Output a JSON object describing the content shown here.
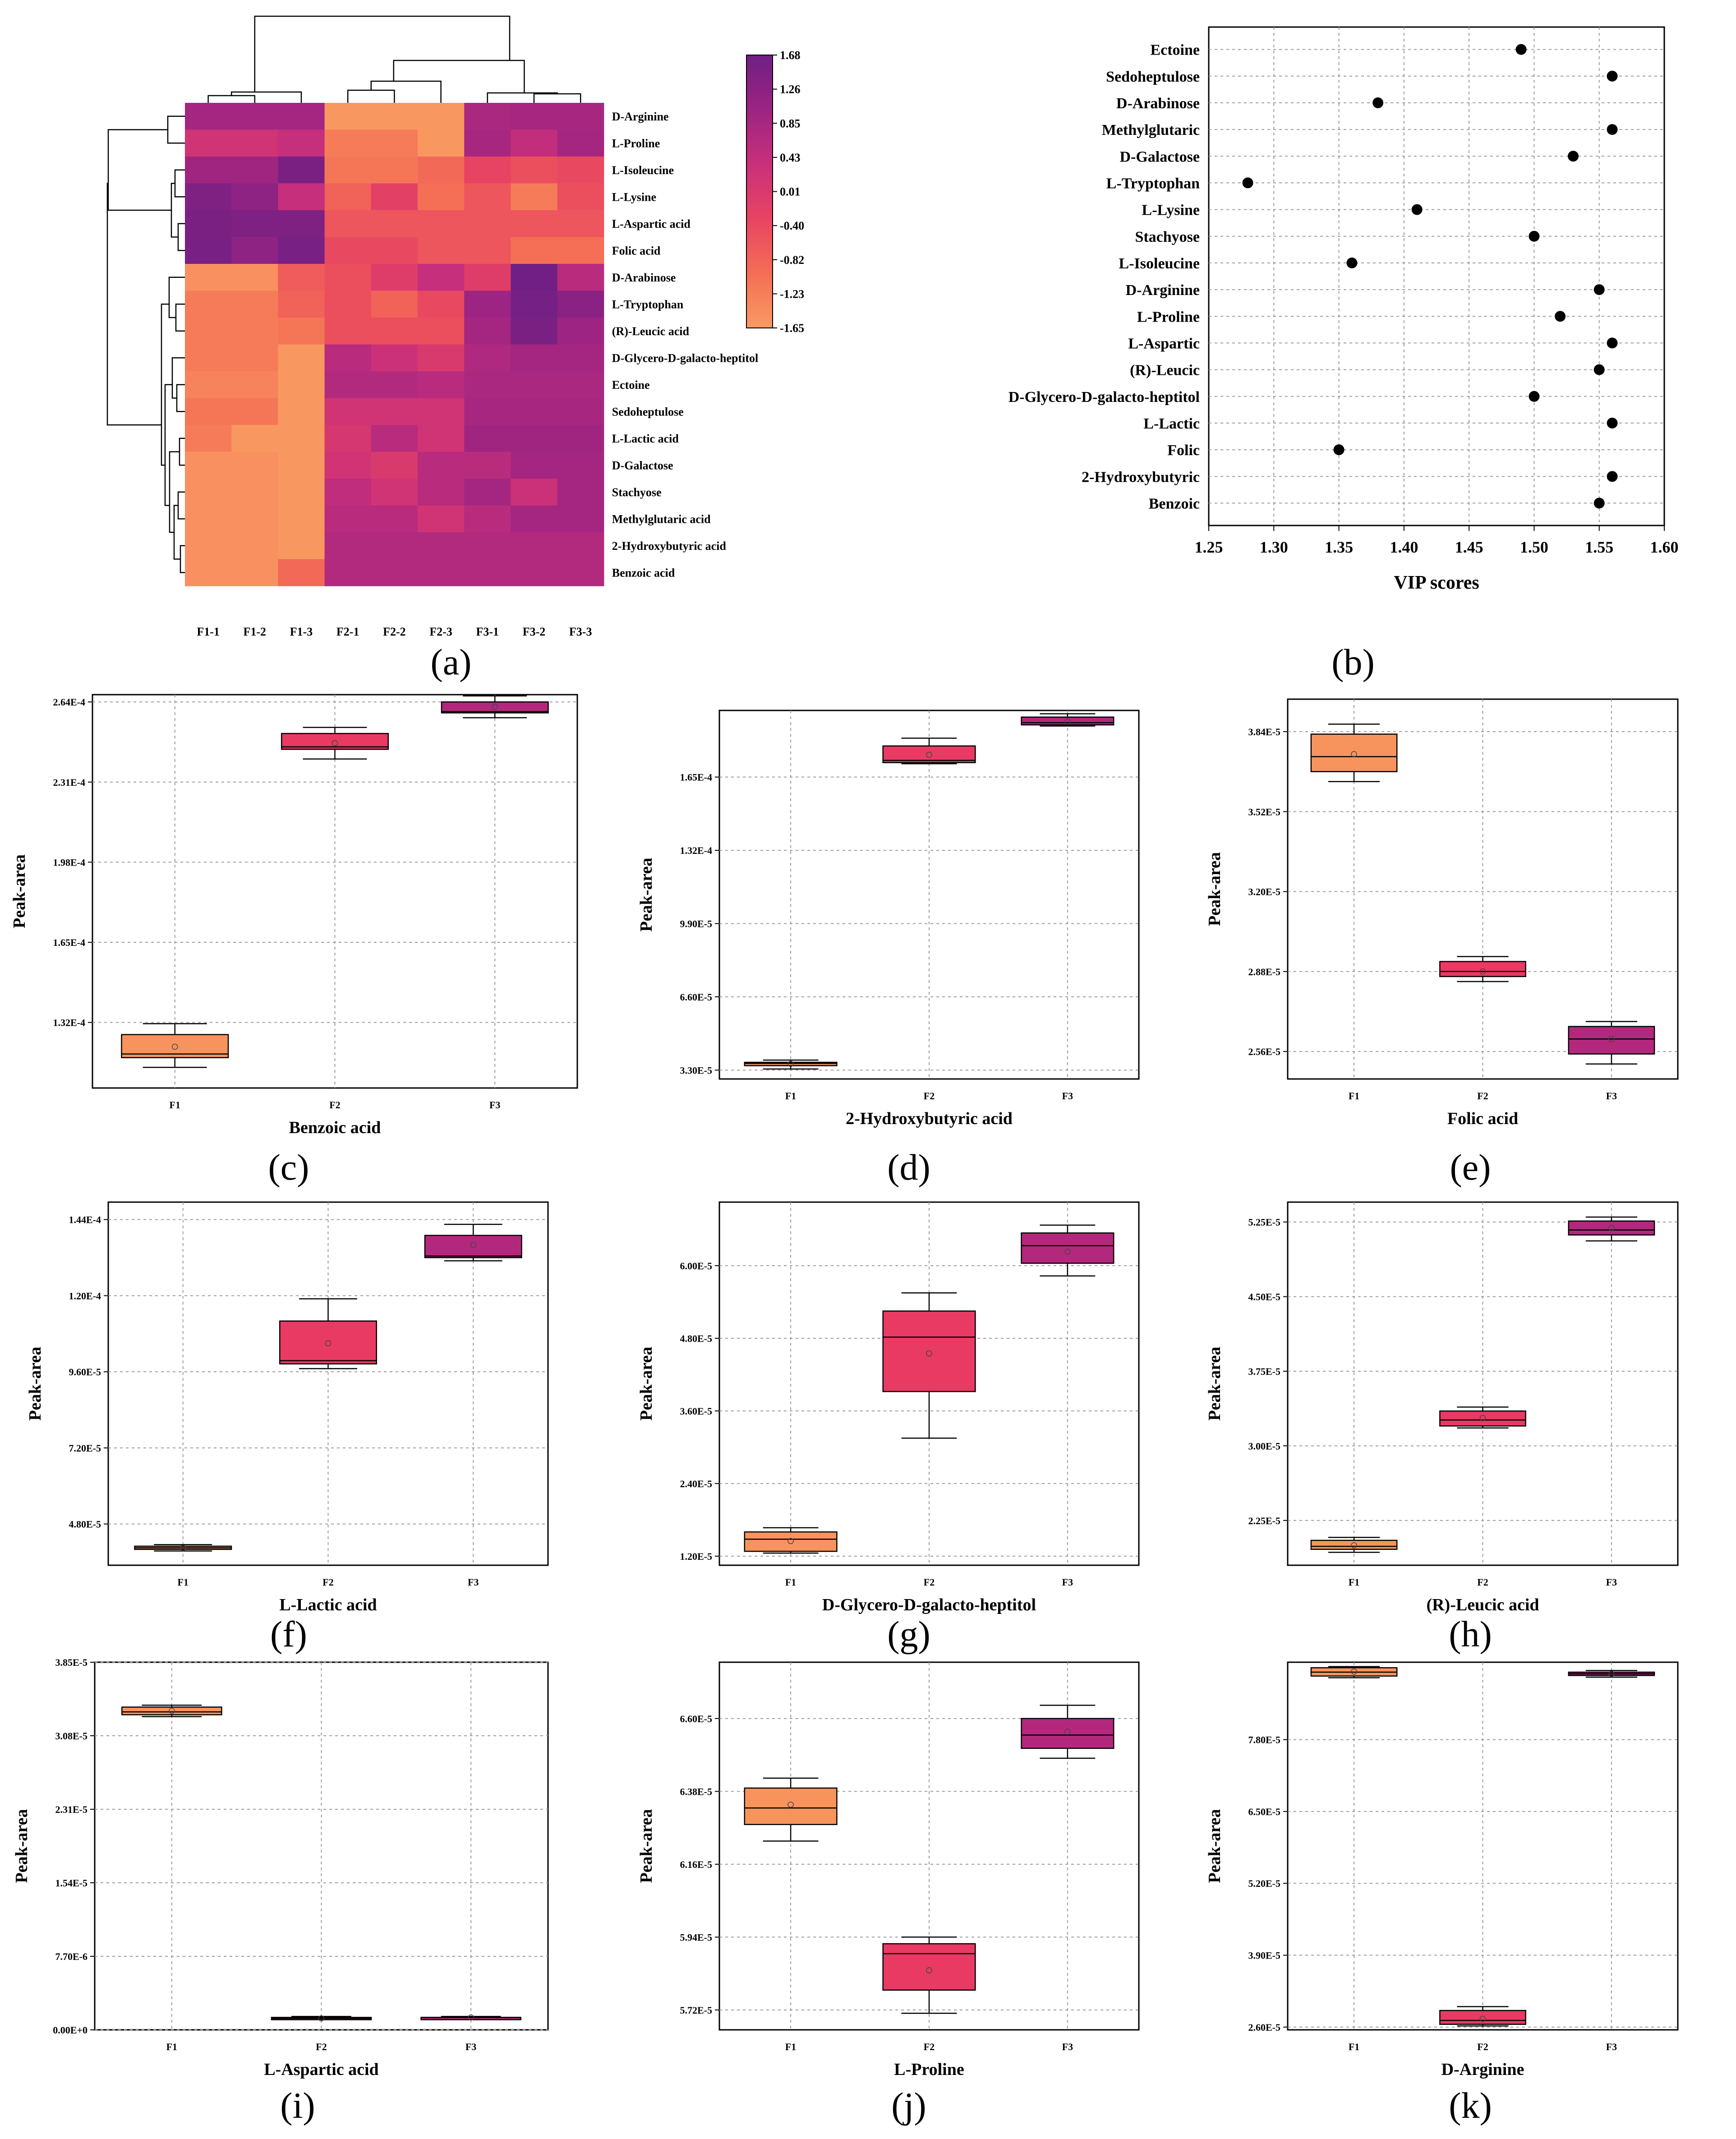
{
  "colors": {
    "F1": "#f7945d",
    "F2": "#e83a63",
    "F3": "#b3287d",
    "heat_stops": [
      "#f99a62",
      "#f46e55",
      "#e84462",
      "#c9307a",
      "#9c2482",
      "#6f1f84"
    ],
    "dot": "#000000"
  },
  "heatmap": {
    "panel_label": "(a)",
    "columns": [
      "F1-1",
      "F1-2",
      "F1-3",
      "F2-1",
      "F2-2",
      "F2-3",
      "F3-1",
      "F3-2",
      "F3-3"
    ],
    "rows": [
      "D-Arginine",
      "L-Proline",
      "L-Isoleucine",
      "L-Lysine",
      "L-Aspartic acid",
      "Folic acid",
      "D-Arabinose",
      "L-Tryptophan",
      "(R)-Leucic acid",
      "D-Glycero-D-galacto-heptitol",
      "Ectoine",
      "Sedoheptulose",
      "L-Lactic acid",
      "D-Galactose",
      "Stachyose",
      "Methylglutaric acid",
      "2-Hydroxybutyric acid",
      "Benzoic acid"
    ],
    "values": [
      [
        0.9,
        0.9,
        0.9,
        -1.6,
        -1.6,
        -1.6,
        0.8,
        0.85,
        0.85
      ],
      [
        0.2,
        0.2,
        0.4,
        -1.2,
        -1.2,
        -1.6,
        0.85,
        0.45,
        0.9
      ],
      [
        0.95,
        0.95,
        1.5,
        -1.1,
        -1.1,
        -0.9,
        -0.3,
        -0.5,
        -0.4
      ],
      [
        1.45,
        1.2,
        0.4,
        -0.8,
        -0.2,
        -1.0,
        -0.6,
        -1.2,
        -0.5
      ],
      [
        1.5,
        1.45,
        1.45,
        -0.6,
        -0.6,
        -0.6,
        -0.6,
        -0.6,
        -0.6
      ],
      [
        1.55,
        1.2,
        1.55,
        -0.4,
        -0.4,
        -0.6,
        -0.6,
        -1.0,
        -1.0
      ],
      [
        -1.5,
        -1.5,
        -0.7,
        -0.5,
        -0.1,
        0.4,
        -0.1,
        1.65,
        0.6
      ],
      [
        -1.2,
        -1.2,
        -0.8,
        -0.5,
        -0.8,
        -0.4,
        1.0,
        1.6,
        1.3
      ],
      [
        -1.2,
        -1.2,
        -1.1,
        -0.5,
        -0.5,
        -0.5,
        0.9,
        1.5,
        1.0
      ],
      [
        -1.2,
        -1.2,
        -1.6,
        0.6,
        0.3,
        0.0,
        0.75,
        0.9,
        0.9
      ],
      [
        -1.3,
        -1.3,
        -1.6,
        0.7,
        0.7,
        0.6,
        0.8,
        0.8,
        0.8
      ],
      [
        -1.1,
        -1.1,
        -1.6,
        0.2,
        0.2,
        0.2,
        0.85,
        0.85,
        0.85
      ],
      [
        -1.2,
        -1.6,
        -1.6,
        0.1,
        0.6,
        0.2,
        0.95,
        0.95,
        0.95
      ],
      [
        -1.5,
        -1.5,
        -1.6,
        0.2,
        0.0,
        0.6,
        0.6,
        0.9,
        0.9
      ],
      [
        -1.5,
        -1.5,
        -1.6,
        0.5,
        0.2,
        0.6,
        0.9,
        0.3,
        0.9
      ],
      [
        -1.5,
        -1.5,
        -1.6,
        0.6,
        0.6,
        0.2,
        0.6,
        0.9,
        0.9
      ],
      [
        -1.5,
        -1.5,
        -1.6,
        0.7,
        0.7,
        0.7,
        0.7,
        0.7,
        0.7
      ],
      [
        -1.5,
        -1.5,
        -0.9,
        0.7,
        0.7,
        0.7,
        0.7,
        0.7,
        0.7
      ]
    ],
    "scale_ticks": [
      "1.68",
      "1.26",
      "0.85",
      "0.43",
      "0.01",
      "-0.40",
      "-0.82",
      "-1.23",
      "-1.65"
    ],
    "scale_min": -1.65,
    "scale_max": 1.68
  },
  "vip": {
    "panel_label": "(b)",
    "xlabel": "VIP scores",
    "xlim": [
      1.25,
      1.6
    ],
    "ticks": [
      "1.25",
      "1.30",
      "1.35",
      "1.40",
      "1.45",
      "1.50",
      "1.55",
      "1.60"
    ],
    "names": [
      "Ectoine",
      "Sedoheptulose",
      "D-Arabinose",
      "Methylglutaric",
      "D-Galactose",
      "L-Tryptophan",
      "L-Lysine",
      "Stachyose",
      "L-Isoleucine",
      "D-Arginine",
      "L-Proline",
      "L-Aspartic",
      "(R)-Leucic",
      "D-Glycero-D-galacto-heptitol",
      "L-Lactic",
      "Folic",
      "2-Hydroxybutyric",
      "Benzoic"
    ],
    "values": [
      1.49,
      1.56,
      1.38,
      1.56,
      1.53,
      1.28,
      1.41,
      1.5,
      1.36,
      1.55,
      1.52,
      1.56,
      1.55,
      1.5,
      1.56,
      1.35,
      1.56,
      1.55
    ]
  },
  "boxes": [
    {
      "label": "(c)",
      "title": "Benzoic acid",
      "ylabel": "Peak-area",
      "ymin": 0.000105,
      "ymax": 0.000267,
      "ticks": [
        {
          "v": 0.000132,
          "t": "1.32E-4"
        },
        {
          "v": 0.000165,
          "t": "1.65E-4"
        },
        {
          "v": 0.000198,
          "t": "1.98E-4"
        },
        {
          "v": 0.000231,
          "t": "2.31E-4"
        },
        {
          "v": 0.000264,
          "t": "2.64E-4"
        }
      ],
      "cats": [
        "F1",
        "F2",
        "F3"
      ],
      "stats": [
        {
          "min": 0.0001135,
          "q1": 0.0001175,
          "med": 0.000119,
          "q3": 0.000127,
          "max": 0.0001315,
          "mean": 0.000122
        },
        {
          "min": 0.0002405,
          "q1": 0.0002445,
          "med": 0.0002455,
          "q3": 0.000251,
          "max": 0.0002535,
          "mean": 0.000247
        },
        {
          "min": 0.0002575,
          "q1": 0.0002595,
          "med": 0.00026,
          "q3": 0.000264,
          "max": 0.0002665,
          "mean": 0.000262
        }
      ]
    },
    {
      "label": "(d)",
      "title": "2-Hydroxybutyric acid",
      "ylabel": "Peak-area",
      "ymin": 2.9e-05,
      "ymax": 0.000195,
      "ticks": [
        {
          "v": 3.3e-05,
          "t": "3.30E-5"
        },
        {
          "v": 6.6e-05,
          "t": "6.60E-5"
        },
        {
          "v": 9.9e-05,
          "t": "9.90E-5"
        },
        {
          "v": 0.000132,
          "t": "1.32E-4"
        },
        {
          "v": 0.000165,
          "t": "1.65E-4"
        }
      ],
      "cats": [
        "F1",
        "F2",
        "F3"
      ],
      "stats": [
        {
          "min": 3.35e-05,
          "q1": 3.5e-05,
          "med": 3.6e-05,
          "q3": 3.65e-05,
          "max": 3.75e-05,
          "mean": 3.58e-05
        },
        {
          "min": 0.000171,
          "q1": 0.0001715,
          "med": 0.0001725,
          "q3": 0.000179,
          "max": 0.0001825,
          "mean": 0.000175
        },
        {
          "min": 0.000188,
          "q1": 0.0001885,
          "med": 0.0001895,
          "q3": 0.000192,
          "max": 0.0001935,
          "mean": 0.00019
        }
      ]
    },
    {
      "label": "(e)",
      "title": "Folic acid",
      "ylabel": "Peak-area",
      "ymin": 2.45e-05,
      "ymax": 3.97e-05,
      "ticks": [
        {
          "v": 2.56e-05,
          "t": "2.56E-5"
        },
        {
          "v": 2.88e-05,
          "t": "2.88E-5"
        },
        {
          "v": 3.2e-05,
          "t": "3.20E-5"
        },
        {
          "v": 3.52e-05,
          "t": "3.52E-5"
        },
        {
          "v": 3.84e-05,
          "t": "3.84E-5"
        }
      ],
      "cats": [
        "F1",
        "F2",
        "F3"
      ],
      "stats": [
        {
          "min": 3.64e-05,
          "q1": 3.68e-05,
          "med": 3.74e-05,
          "q3": 3.83e-05,
          "max": 3.87e-05,
          "mean": 3.75e-05
        },
        {
          "min": 2.84e-05,
          "q1": 2.86e-05,
          "med": 2.88e-05,
          "q3": 2.92e-05,
          "max": 2.94e-05,
          "mean": 2.88e-05
        },
        {
          "min": 2.51e-05,
          "q1": 2.55e-05,
          "med": 2.61e-05,
          "q3": 2.66e-05,
          "max": 2.68e-05,
          "mean": 2.61e-05
        }
      ]
    },
    {
      "label": "(f)",
      "title": "L-Lactic acid",
      "ylabel": "Peak-area",
      "ymin": 3.5e-05,
      "ymax": 0.0001495,
      "ticks": [
        {
          "v": 4.8e-05,
          "t": "4.80E-5"
        },
        {
          "v": 7.2e-05,
          "t": "7.20E-5"
        },
        {
          "v": 9.6e-05,
          "t": "9.60E-5"
        },
        {
          "v": 0.00012,
          "t": "1.20E-4"
        },
        {
          "v": 0.000144,
          "t": "1.44E-4"
        }
      ],
      "cats": [
        "F1",
        "F2",
        "F3"
      ],
      "stats": [
        {
          "min": 3.95e-05,
          "q1": 4e-05,
          "med": 4.05e-05,
          "q3": 4.1e-05,
          "max": 4.15e-05,
          "mean": 4.05e-05
        },
        {
          "min": 9.7e-05,
          "q1": 9.85e-05,
          "med": 9.95e-05,
          "q3": 0.000112,
          "max": 0.000119,
          "mean": 0.000105
        },
        {
          "min": 0.000131,
          "q1": 0.000132,
          "med": 0.0001325,
          "q3": 0.000139,
          "max": 0.0001425,
          "mean": 0.000136
        }
      ]
    },
    {
      "label": "(g)",
      "title": "D-Glycero-D-galacto-heptitol",
      "ylabel": "Peak-area",
      "ymin": 1.05e-05,
      "ymax": 7.05e-05,
      "ticks": [
        {
          "v": 1.2e-05,
          "t": "1.20E-5"
        },
        {
          "v": 2.4e-05,
          "t": "2.40E-5"
        },
        {
          "v": 3.6e-05,
          "t": "3.60E-5"
        },
        {
          "v": 4.8e-05,
          "t": "4.80E-5"
        },
        {
          "v": 6e-05,
          "t": "6.00E-5"
        }
      ],
      "cats": [
        "F1",
        "F2",
        "F3"
      ],
      "stats": [
        {
          "min": 1.25e-05,
          "q1": 1.28e-05,
          "med": 1.48e-05,
          "q3": 1.6e-05,
          "max": 1.67e-05,
          "mean": 1.45e-05
        },
        {
          "min": 3.15e-05,
          "q1": 3.92e-05,
          "med": 4.82e-05,
          "q3": 5.25e-05,
          "max": 5.55e-05,
          "mean": 4.55e-05
        },
        {
          "min": 5.83e-05,
          "q1": 6.04e-05,
          "med": 6.33e-05,
          "q3": 6.54e-05,
          "max": 6.67e-05,
          "mean": 6.23e-05
        }
      ]
    },
    {
      "label": "(h)",
      "title": "(R)-Leucic acid",
      "ylabel": "Peak-area",
      "ymin": 1.8e-05,
      "ymax": 5.45e-05,
      "ticks": [
        {
          "v": 2.25e-05,
          "t": "2.25E-5"
        },
        {
          "v": 3e-05,
          "t": "3.00E-5"
        },
        {
          "v": 3.75e-05,
          "t": "3.75E-5"
        },
        {
          "v": 4.5e-05,
          "t": "4.50E-5"
        },
        {
          "v": 5.25e-05,
          "t": "5.25E-5"
        }
      ],
      "cats": [
        "F1",
        "F2",
        "F3"
      ],
      "stats": [
        {
          "min": 1.93e-05,
          "q1": 1.96e-05,
          "med": 1.99e-05,
          "q3": 2.05e-05,
          "max": 2.08e-05,
          "mean": 2e-05
        },
        {
          "min": 3.18e-05,
          "q1": 3.2e-05,
          "med": 3.26e-05,
          "q3": 3.35e-05,
          "max": 3.39e-05,
          "mean": 3.28e-05
        },
        {
          "min": 5.06e-05,
          "q1": 5.12e-05,
          "med": 5.17e-05,
          "q3": 5.26e-05,
          "max": 5.3e-05,
          "mean": 5.19e-05
        }
      ]
    },
    {
      "label": "(i)",
      "title": "L-Aspartic acid",
      "ylabel": "Peak-area",
      "ymin": 0,
      "ymax": 3.85e-05,
      "ticks": [
        {
          "v": 0,
          "t": "0.00E+0"
        },
        {
          "v": 7.7e-06,
          "t": "7.70E-6"
        },
        {
          "v": 1.54e-05,
          "t": "1.54E-5"
        },
        {
          "v": 2.31e-05,
          "t": "2.31E-5"
        },
        {
          "v": 3.08e-05,
          "t": "3.08E-5"
        },
        {
          "v": 3.85e-05,
          "t": "3.85E-5"
        }
      ],
      "cats": [
        "F1",
        "F2",
        "F3"
      ],
      "stats": [
        {
          "min": 3.28e-05,
          "q1": 3.3e-05,
          "med": 3.33e-05,
          "q3": 3.38e-05,
          "max": 3.4e-05,
          "mean": 3.34e-05
        },
        {
          "min": 1.1e-06,
          "q1": 1.2e-06,
          "med": 1.2e-06,
          "q3": 1.3e-06,
          "max": 1.4e-06,
          "mean": 1.2e-06
        },
        {
          "min": 1.2e-06,
          "q1": 1.2e-06,
          "med": 1.3e-06,
          "q3": 1.3e-06,
          "max": 1.4e-06,
          "mean": 1.3e-06
        }
      ]
    },
    {
      "label": "(j)",
      "title": "L-Proline",
      "ylabel": "Peak-area",
      "ymin": 5.66e-05,
      "ymax": 6.77e-05,
      "ticks": [
        {
          "v": 5.72e-05,
          "t": "5.72E-5"
        },
        {
          "v": 5.94e-05,
          "t": "5.94E-5"
        },
        {
          "v": 6.16e-05,
          "t": "6.16E-5"
        },
        {
          "v": 6.38e-05,
          "t": "6.38E-5"
        },
        {
          "v": 6.6e-05,
          "t": "6.60E-5"
        }
      ],
      "cats": [
        "F1",
        "F2",
        "F3"
      ],
      "stats": [
        {
          "min": 6.23e-05,
          "q1": 6.28e-05,
          "med": 6.33e-05,
          "q3": 6.39e-05,
          "max": 6.42e-05,
          "mean": 6.34e-05
        },
        {
          "min": 5.71e-05,
          "q1": 5.78e-05,
          "med": 5.89e-05,
          "q3": 5.92e-05,
          "max": 5.94e-05,
          "mean": 5.84e-05
        },
        {
          "min": 6.48e-05,
          "q1": 6.51e-05,
          "med": 6.55e-05,
          "q3": 6.6e-05,
          "max": 6.64e-05,
          "mean": 6.56e-05
        }
      ]
    },
    {
      "label": "(k)",
      "title": "D-Arginine",
      "ylabel": "Peak-area",
      "ymin": 2.55e-05,
      "ymax": 9.2e-05,
      "ticks": [
        {
          "v": 2.6e-05,
          "t": "2.60E-5"
        },
        {
          "v": 3.9e-05,
          "t": "3.90E-5"
        },
        {
          "v": 5.2e-05,
          "t": "5.20E-5"
        },
        {
          "v": 6.5e-05,
          "t": "6.50E-5"
        },
        {
          "v": 7.8e-05,
          "t": "7.80E-5"
        }
      ],
      "cats": [
        "F1",
        "F2",
        "F3"
      ],
      "stats": [
        {
          "min": 8.92e-05,
          "q1": 8.95e-05,
          "med": 9.02e-05,
          "q3": 9.1e-05,
          "max": 9.12e-05,
          "mean": 9.03e-05
        },
        {
          "min": 2.62e-05,
          "q1": 2.65e-05,
          "med": 2.72e-05,
          "q3": 2.9e-05,
          "max": 2.97e-05,
          "mean": 2.75e-05
        },
        {
          "min": 8.93e-05,
          "q1": 8.96e-05,
          "med": 8.99e-05,
          "q3": 9.02e-05,
          "max": 9.05e-05,
          "mean": 8.99e-05
        }
      ]
    }
  ],
  "chart_data": [
    {
      "type": "heatmap",
      "title": "(a)",
      "x": [
        "F1-1",
        "F1-2",
        "F1-3",
        "F2-1",
        "F2-2",
        "F2-3",
        "F3-1",
        "F3-2",
        "F3-3"
      ],
      "color_range": [
        -1.65,
        1.68
      ]
    },
    {
      "type": "scatter",
      "title": "(b)",
      "xlabel": "VIP scores",
      "xlim": [
        1.25,
        1.6
      ]
    },
    {
      "type": "box",
      "title": "(c)",
      "xlabel": "Benzoic acid",
      "ylabel": "Peak-area",
      "categories": [
        "F1",
        "F2",
        "F3"
      ]
    },
    {
      "type": "box",
      "title": "(d)",
      "xlabel": "2-Hydroxybutyric acid",
      "ylabel": "Peak-area",
      "categories": [
        "F1",
        "F2",
        "F3"
      ]
    },
    {
      "type": "box",
      "title": "(e)",
      "xlabel": "Folic acid",
      "ylabel": "Peak-area",
      "categories": [
        "F1",
        "F2",
        "F3"
      ]
    },
    {
      "type": "box",
      "title": "(f)",
      "xlabel": "L-Lactic acid",
      "ylabel": "Peak-area",
      "categories": [
        "F1",
        "F2",
        "F3"
      ]
    },
    {
      "type": "box",
      "title": "(g)",
      "xlabel": "D-Glycero-D-galacto-heptitol",
      "ylabel": "Peak-area",
      "categories": [
        "F1",
        "F2",
        "F3"
      ]
    },
    {
      "type": "box",
      "title": "(h)",
      "xlabel": "(R)-Leucic acid",
      "ylabel": "Peak-area",
      "categories": [
        "F1",
        "F2",
        "F3"
      ]
    },
    {
      "type": "box",
      "title": "(i)",
      "xlabel": "L-Aspartic acid",
      "ylabel": "Peak-area",
      "categories": [
        "F1",
        "F2",
        "F3"
      ]
    },
    {
      "type": "box",
      "title": "(j)",
      "xlabel": "L-Proline",
      "ylabel": "Peak-area",
      "categories": [
        "F1",
        "F2",
        "F3"
      ]
    },
    {
      "type": "box",
      "title": "(k)",
      "xlabel": "D-Arginine",
      "ylabel": "Peak-area",
      "categories": [
        "F1",
        "F2",
        "F3"
      ]
    }
  ]
}
